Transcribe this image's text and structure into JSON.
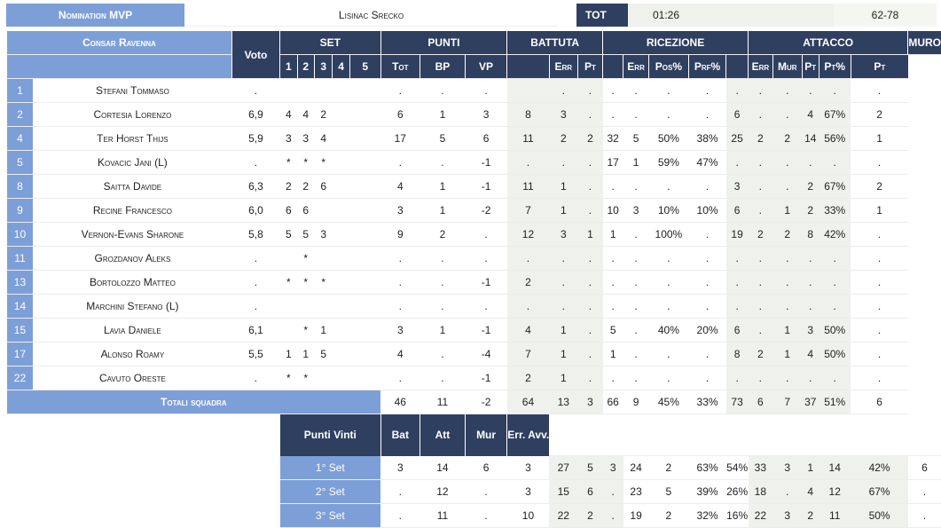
{
  "header": {
    "mvp_label": "Nomination MVP",
    "mvp_name": "Lisinac Srecko",
    "tot_label": "TOT",
    "time": "01:26",
    "score": "62-78"
  },
  "table": {
    "team": "Consar Ravenna",
    "voto": "Voto",
    "groups": [
      "SET",
      "PUNTI",
      "BATTUTA",
      "RICEZIONE",
      "ATTACCO",
      "MURO"
    ],
    "subheaders": [
      "1",
      "2",
      "3",
      "4",
      "5",
      "Tot",
      "BP",
      "VP",
      "",
      "Err",
      "Pt",
      "",
      "Err",
      "Pos%",
      "Prf%",
      "",
      "Err",
      "Mur",
      "Pt",
      "Pt%",
      "Pt"
    ],
    "rows": [
      [
        "1",
        "Stefani Tommaso",
        ".",
        "",
        "",
        "",
        "",
        "",
        ".",
        ".",
        ".",
        "",
        ".",
        ".",
        ".",
        ".",
        ".",
        ".",
        ".",
        ".",
        ".",
        ".",
        ".",
        "."
      ],
      [
        "2",
        "Cortesia Lorenzo",
        "6,9",
        "4",
        "4",
        "2",
        "",
        "",
        "6",
        "1",
        "3",
        "8",
        "3",
        ".",
        ".",
        ".",
        ".",
        ".",
        "6",
        ".",
        ".",
        "4",
        "67%",
        "2"
      ],
      [
        "4",
        "Ter Horst Thijs",
        "5,9",
        "3",
        "3",
        "4",
        "",
        "",
        "17",
        "5",
        "6",
        "11",
        "2",
        "2",
        "32",
        "5",
        "50%",
        "38%",
        "25",
        "2",
        "2",
        "14",
        "56%",
        "1"
      ],
      [
        "5",
        "Kovacic Jani (L)",
        ".",
        "*",
        "*",
        "*",
        "",
        "",
        ".",
        ".",
        "-1",
        ".",
        ".",
        ".",
        "17",
        "1",
        "59%",
        "47%",
        ".",
        ".",
        ".",
        ".",
        ".",
        "."
      ],
      [
        "8",
        "Saitta Davide",
        "6,3",
        "2",
        "2",
        "6",
        "",
        "",
        "4",
        "1",
        "-1",
        "11",
        "1",
        ".",
        ".",
        ".",
        ".",
        ".",
        "3",
        ".",
        ".",
        "2",
        "67%",
        "2"
      ],
      [
        "9",
        "Recine Francesco",
        "6,0",
        "6",
        "6",
        "",
        "",
        "",
        "3",
        "1",
        "-2",
        "7",
        "1",
        ".",
        "10",
        "3",
        "10%",
        "10%",
        "6",
        ".",
        "1",
        "2",
        "33%",
        "1"
      ],
      [
        "10",
        "Vernon-Evans Sharone",
        "5,8",
        "5",
        "5",
        "3",
        "",
        "",
        "9",
        "2",
        ".",
        "12",
        "3",
        "1",
        "1",
        ".",
        "100%",
        ".",
        "19",
        "2",
        "2",
        "8",
        "42%",
        "."
      ],
      [
        "11",
        "Grozdanov Aleks",
        ".",
        "",
        "*",
        "",
        "",
        "",
        ".",
        ".",
        ".",
        ".",
        ".",
        ".",
        ".",
        ".",
        ".",
        ".",
        ".",
        ".",
        ".",
        ".",
        ".",
        "."
      ],
      [
        "13",
        "Bortolozzo Matteo",
        ".",
        "*",
        "*",
        "*",
        "",
        "",
        ".",
        ".",
        "-1",
        "2",
        ".",
        ".",
        ".",
        ".",
        ".",
        ".",
        ".",
        ".",
        ".",
        ".",
        ".",
        "."
      ],
      [
        "14",
        "Marchini Stefano (L)",
        ".",
        "",
        "",
        "",
        "",
        "",
        ".",
        ".",
        ".",
        ".",
        ".",
        ".",
        ".",
        ".",
        ".",
        ".",
        ".",
        ".",
        ".",
        ".",
        ".",
        "."
      ],
      [
        "15",
        "Lavia Daniele",
        "6,1",
        "",
        "*",
        "1",
        "",
        "",
        "3",
        "1",
        "-1",
        "4",
        "1",
        ".",
        "5",
        ".",
        "40%",
        "20%",
        "6",
        ".",
        "1",
        "3",
        "50%",
        "."
      ],
      [
        "17",
        "Alonso Roamy",
        "5,5",
        "1",
        "1",
        "5",
        "",
        "",
        "4",
        ".",
        "-4",
        "7",
        "1",
        ".",
        "1",
        ".",
        ".",
        ".",
        "8",
        "2",
        "1",
        "4",
        "50%",
        "."
      ],
      [
        "22",
        "Cavuto Oreste",
        ".",
        "*",
        "*",
        "",
        "",
        "",
        ".",
        ".",
        "-1",
        "2",
        "1",
        ".",
        ".",
        ".",
        ".",
        ".",
        ".",
        ".",
        ".",
        ".",
        ".",
        "."
      ]
    ],
    "totals_label": "Totali squadra",
    "totals": [
      "46",
      "11",
      "-2",
      "64",
      "13",
      "3",
      "66",
      "9",
      "45%",
      "33%",
      "73",
      "6",
      "7",
      "37",
      "51%",
      "6"
    ],
    "pv_headers": [
      "Punti Vinti",
      "Bat",
      "Att",
      "Mur",
      "Err. Avv."
    ],
    "sets": [
      {
        "label": "1° Set",
        "vals": [
          "3",
          "14",
          "6",
          "3",
          "27",
          "5",
          "3",
          "24",
          "2",
          "63%",
          "54%",
          "33",
          "3",
          "1",
          "14",
          "42%",
          "6"
        ]
      },
      {
        "label": "2° Set",
        "vals": [
          ".",
          "12",
          ".",
          "3",
          "15",
          "6",
          ".",
          "23",
          "5",
          "39%",
          "26%",
          "18",
          ".",
          "4",
          "12",
          "67%",
          "."
        ]
      },
      {
        "label": "3° Set",
        "vals": [
          ".",
          "11",
          ".",
          "10",
          "22",
          "2",
          ".",
          "19",
          "2",
          "32%",
          "16%",
          "22",
          "3",
          "2",
          "11",
          "50%",
          "."
        ]
      }
    ]
  }
}
